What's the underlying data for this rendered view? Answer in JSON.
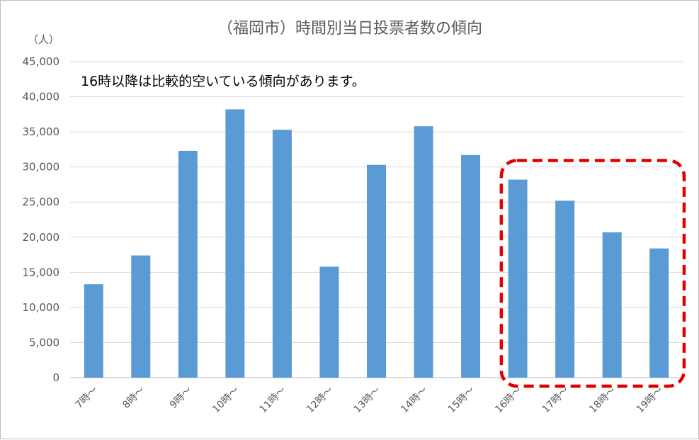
{
  "chart_data": {
    "type": "bar",
    "title": "（福岡市）時間別当日投票者数の傾向",
    "ylabel": "（人）",
    "annotation": "16時以降は比較的空いている傾向があります。",
    "categories": [
      "7時～",
      "8時～",
      "9時～",
      "10時～",
      "11時～",
      "12時～",
      "13時～",
      "14時～",
      "15時～",
      "16時～",
      "17時～",
      "18時～",
      "19時～"
    ],
    "values": [
      13300,
      17400,
      32300,
      38200,
      35300,
      15800,
      30300,
      35800,
      31700,
      28200,
      25200,
      20700,
      18400
    ],
    "ylim": [
      0,
      45000
    ],
    "yticks": [
      0,
      5000,
      10000,
      15000,
      20000,
      25000,
      30000,
      35000,
      40000,
      45000
    ],
    "ytick_labels": [
      "0",
      "5,000",
      "10,000",
      "15,000",
      "20,000",
      "25,000",
      "30,000",
      "35,000",
      "40,000",
      "45,000"
    ],
    "grid": true,
    "highlight_categories": [
      "16時～",
      "17時～",
      "18時～",
      "19時～"
    ],
    "colors": {
      "bar": "#5b9bd5",
      "highlight": "#e00000",
      "grid": "#d9d9d9",
      "text": "#595959"
    }
  }
}
